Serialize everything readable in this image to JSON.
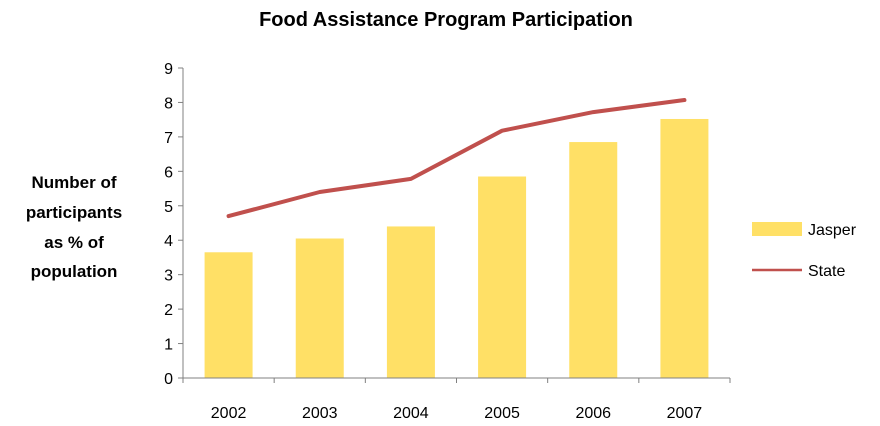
{
  "chart_data": {
    "type": "bar",
    "title": "Food Assistance Program Participation",
    "ylabel": "Number of participants as % of population",
    "ylabel_lines": [
      "Number of",
      "participants",
      "as % of",
      "population"
    ],
    "xlabel": "",
    "categories": [
      "2002",
      "2003",
      "2004",
      "2005",
      "2006",
      "2007"
    ],
    "yticks": [
      "0",
      "1",
      "2",
      "3",
      "4",
      "5",
      "6",
      "7",
      "8",
      "9"
    ],
    "ylim": [
      0,
      9
    ],
    "series": [
      {
        "name": "Jasper",
        "type": "bar",
        "color": "#FFE066",
        "values": [
          3.65,
          4.05,
          4.4,
          5.85,
          6.85,
          7.52
        ]
      },
      {
        "name": "State",
        "type": "line",
        "color": "#C0504D",
        "values": [
          4.7,
          5.4,
          5.78,
          7.18,
          7.72,
          8.07
        ]
      }
    ],
    "legend_position": "right",
    "grid": false
  }
}
